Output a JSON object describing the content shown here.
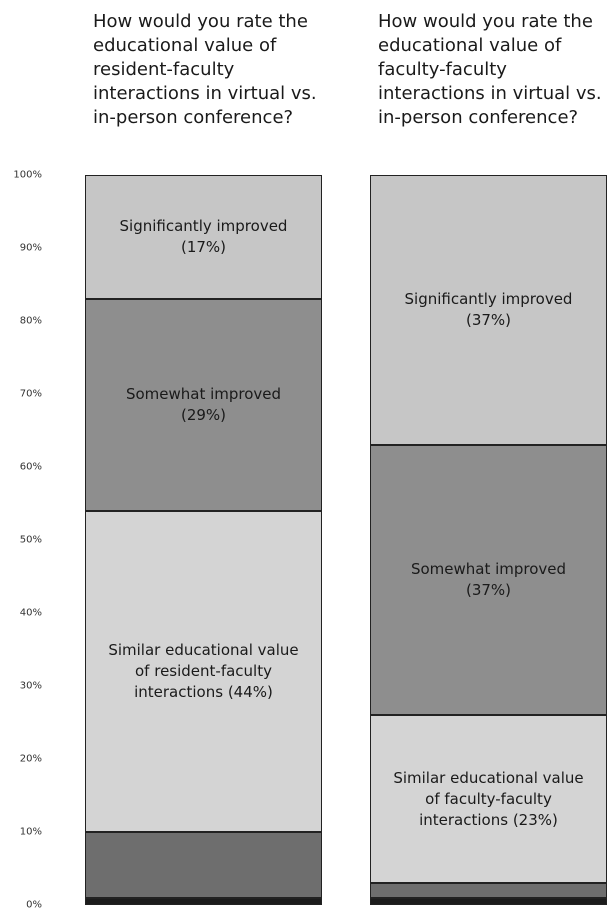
{
  "chart_data": {
    "type": "stacked_bar",
    "categories": [
      "How would you rate the educational value of resident-faculty interactions in virtual vs. in-person conference?",
      "How would you rate the educational value of faculty-faculty interactions in virtual vs. in-person conference?"
    ],
    "ylim": [
      0,
      100
    ],
    "yticks": [
      {
        "value": 0,
        "label": "0%"
      },
      {
        "value": 10,
        "label": "10%"
      },
      {
        "value": 20,
        "label": "20%"
      },
      {
        "value": 30,
        "label": "30%"
      },
      {
        "value": 40,
        "label": "40%"
      },
      {
        "value": 50,
        "label": "50%"
      },
      {
        "value": 60,
        "label": "60%"
      },
      {
        "value": 70,
        "label": "70%"
      },
      {
        "value": 80,
        "label": "80%"
      },
      {
        "value": 90,
        "label": "90%"
      },
      {
        "value": 100,
        "label": "100%"
      }
    ],
    "series": [
      {
        "color": "#1c1c1c",
        "values": [
          1,
          1
        ]
      },
      {
        "color": "#6e6e6e",
        "values": [
          9,
          2
        ]
      },
      {
        "color": "#d4d4d4",
        "values": [
          44,
          23
        ],
        "value_labels": [
          "Similar educational value\nof resident-faculty\ninteractions (44%)",
          "Similar educational value\nof faculty-faculty\ninteractions (23%)"
        ]
      },
      {
        "color": "#8e8e8e",
        "values": [
          29,
          37
        ],
        "value_labels": [
          "Somewhat improved\n(29%)",
          "Somewhat improved\n(37%)"
        ]
      },
      {
        "color": "#c6c6c6",
        "values": [
          17,
          37
        ],
        "value_labels": [
          "Significantly improved\n(17%)",
          "Significantly improved\n(37%)"
        ]
      }
    ]
  }
}
